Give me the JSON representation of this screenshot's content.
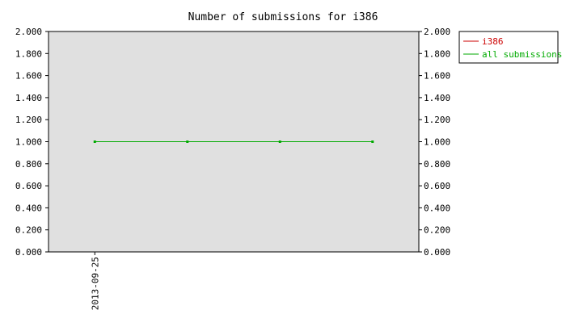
{
  "chart_data": {
    "type": "line",
    "title": "Number of submissions for i386",
    "xlabel": "",
    "ylabel": "",
    "x_tick_labels": [
      "2013-09-25"
    ],
    "ylim": [
      0,
      2
    ],
    "y_ticks": [
      "0.000",
      "0.200",
      "0.400",
      "0.600",
      "0.800",
      "1.000",
      "1.200",
      "1.400",
      "1.600",
      "1.800",
      "2.000"
    ],
    "grid": false,
    "legend_position": "right",
    "series": [
      {
        "name": "i386",
        "color": "#cc0000",
        "values": []
      },
      {
        "name": "all submissions",
        "color": "#00aa00",
        "values": [
          1,
          1,
          1,
          1
        ]
      }
    ]
  }
}
